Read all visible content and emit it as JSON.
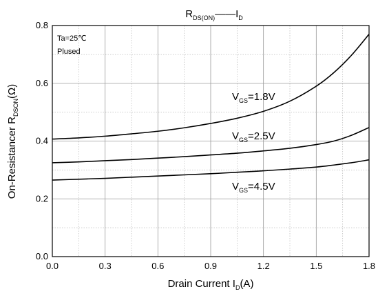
{
  "chart_data": {
    "type": "line",
    "title": {
      "main": "R",
      "main_sub": "DS(ON)",
      "dash": "——",
      "tail": "I",
      "tail_sub": "D"
    },
    "xlabel": {
      "main": "Drain Current I",
      "sub": "D",
      "tail": "(A)"
    },
    "ylabel": {
      "main": "On-Resistancer R",
      "sub": "DSON",
      "tail": "(Ω)"
    },
    "xlim": [
      0,
      1.8
    ],
    "ylim": [
      0,
      0.8
    ],
    "x_ticks": [
      "0.0",
      "0.3",
      "0.6",
      "0.9",
      "1.2",
      "1.5",
      "1.8"
    ],
    "y_ticks": [
      "0.0",
      "0.2",
      "0.4",
      "0.6",
      "0.8"
    ],
    "grid": true,
    "annotations": [
      "Ta=25℃",
      "Plused"
    ],
    "series": [
      {
        "name": "V_GS=1.8V",
        "label": {
          "main": "V",
          "sub": "GS",
          "tail": "=1.8V"
        },
        "x": [
          0,
          0.15,
          0.3,
          0.45,
          0.6,
          0.75,
          0.9,
          1.05,
          1.2,
          1.35,
          1.5,
          1.6,
          1.7,
          1.8
        ],
        "y": [
          0.407,
          0.411,
          0.417,
          0.425,
          0.434,
          0.446,
          0.461,
          0.479,
          0.503,
          0.538,
          0.59,
          0.637,
          0.697,
          0.77
        ]
      },
      {
        "name": "V_GS=2.5V",
        "label": {
          "main": "V",
          "sub": "GS",
          "tail": "=2.5V"
        },
        "x": [
          0,
          0.15,
          0.3,
          0.45,
          0.6,
          0.75,
          0.9,
          1.05,
          1.2,
          1.35,
          1.5,
          1.6,
          1.7,
          1.8
        ],
        "y": [
          0.325,
          0.328,
          0.332,
          0.336,
          0.341,
          0.346,
          0.352,
          0.358,
          0.366,
          0.375,
          0.388,
          0.4,
          0.42,
          0.447
        ]
      },
      {
        "name": "V_GS=4.5V",
        "label": {
          "main": "V",
          "sub": "GS",
          "tail": "=4.5V"
        },
        "x": [
          0,
          0.15,
          0.3,
          0.45,
          0.6,
          0.75,
          0.9,
          1.05,
          1.2,
          1.35,
          1.5,
          1.6,
          1.7,
          1.8
        ],
        "y": [
          0.265,
          0.268,
          0.271,
          0.275,
          0.279,
          0.283,
          0.287,
          0.292,
          0.297,
          0.303,
          0.31,
          0.317,
          0.325,
          0.335
        ]
      }
    ]
  }
}
